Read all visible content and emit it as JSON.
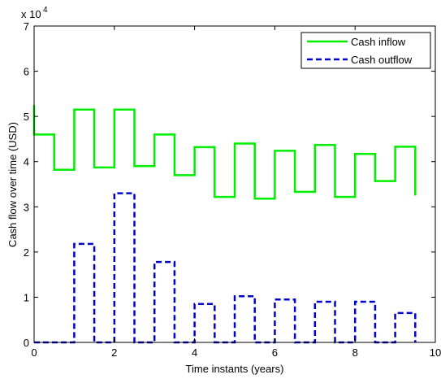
{
  "chart_data": {
    "type": "line",
    "step": true,
    "xlabel": "Time instants (years)",
    "ylabel": "Cash flow over time (USD)",
    "y_multiplier_label": "x 10",
    "y_multiplier_exponent": "4",
    "xlim": [
      0,
      10
    ],
    "ylim": [
      0,
      7
    ],
    "y_scale_factor": 10000,
    "xticks": [
      "0",
      "2",
      "4",
      "6",
      "8",
      "10"
    ],
    "yticks": [
      "0",
      "1",
      "2",
      "3",
      "4",
      "5",
      "6",
      "7"
    ],
    "grid": false,
    "legend_position": "top-right",
    "series": [
      {
        "name": "Cash inflow",
        "color": "#00ee00",
        "dash": "solid",
        "x": [
          0,
          0,
          0.5,
          0.5,
          1.0,
          1.0,
          1.5,
          1.5,
          2.0,
          2.0,
          2.5,
          2.5,
          3.0,
          3.0,
          3.5,
          3.5,
          4.0,
          4.0,
          4.5,
          4.5,
          5.0,
          5.0,
          5.5,
          5.5,
          6.0,
          6.0,
          6.5,
          6.5,
          7.0,
          7.0,
          7.5,
          7.5,
          8.0,
          8.0,
          8.5,
          8.5,
          9.0,
          9.0,
          9.5,
          9.5
        ],
        "y": [
          5.25,
          4.6,
          4.6,
          3.82,
          3.82,
          5.15,
          5.15,
          3.87,
          3.87,
          5.15,
          5.15,
          3.9,
          3.9,
          4.6,
          4.6,
          3.7,
          3.7,
          4.32,
          4.32,
          3.22,
          3.22,
          4.4,
          4.4,
          3.18,
          3.18,
          4.24,
          4.24,
          3.33,
          3.33,
          4.37,
          4.37,
          3.22,
          3.22,
          4.17,
          4.17,
          3.57,
          3.57,
          4.33,
          4.33,
          3.25
        ]
      },
      {
        "name": "Cash outflow",
        "color": "#0000cc",
        "dash": "dashed",
        "x": [
          0,
          1.0,
          1.0,
          1.5,
          1.5,
          2.0,
          2.0,
          2.5,
          2.5,
          3.0,
          3.0,
          3.5,
          3.5,
          4.0,
          4.0,
          4.5,
          4.5,
          5.0,
          5.0,
          5.5,
          5.5,
          6.0,
          6.0,
          6.5,
          6.5,
          7.0,
          7.0,
          7.5,
          7.5,
          8.0,
          8.0,
          8.5,
          8.5,
          9.0,
          9.0,
          9.5,
          9.5
        ],
        "y": [
          0,
          0,
          2.18,
          2.18,
          0,
          0,
          3.3,
          3.3,
          0,
          0,
          1.78,
          1.78,
          0,
          0,
          0.85,
          0.85,
          0,
          0,
          1.02,
          1.02,
          0,
          0,
          0.95,
          0.95,
          0,
          0,
          0.9,
          0.9,
          0,
          0,
          0.9,
          0.9,
          0,
          0,
          0.65,
          0.65,
          0
        ]
      }
    ]
  }
}
